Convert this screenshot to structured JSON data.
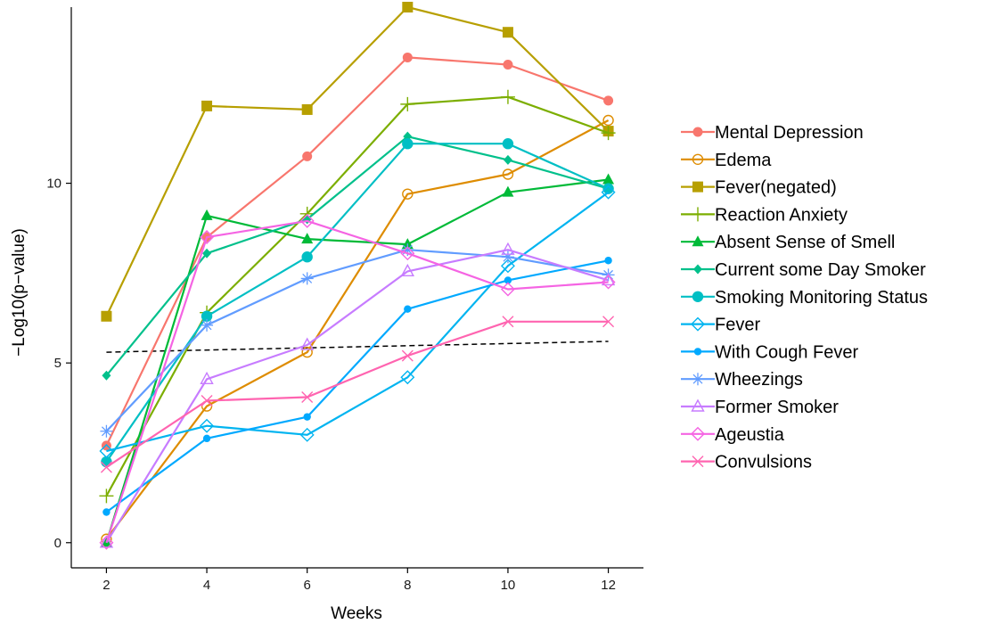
{
  "chart_data": {
    "type": "line",
    "xlabel": "Weeks",
    "ylabel": "−Log10(p−value)",
    "x": [
      2,
      4,
      6,
      8,
      10,
      12
    ],
    "xticks": [
      "2",
      "4",
      "6",
      "8",
      "10",
      "12"
    ],
    "yticks": [
      "0",
      "5",
      "10"
    ],
    "xlim": [
      1.3,
      12.7
    ],
    "ylim": [
      -0.7,
      14.9
    ],
    "grid": false,
    "legend_position": "right",
    "series": [
      {
        "name": "Mental Depression",
        "color": "#F8766D",
        "marker": "circle-filled",
        "values": [
          2.7,
          8.5,
          10.75,
          13.5,
          13.3,
          12.3
        ]
      },
      {
        "name": "Edema",
        "color": "#DE8C00",
        "marker": "circle-open",
        "values": [
          0.1,
          3.8,
          5.3,
          9.7,
          10.25,
          11.75
        ]
      },
      {
        "name": "Fever(negated)",
        "color": "#B79F00",
        "marker": "square-filled",
        "values": [
          6.3,
          12.15,
          12.05,
          14.9,
          14.2,
          11.45
        ]
      },
      {
        "name": "Reaction Anxiety",
        "color": "#7CAE00",
        "marker": "plus",
        "values": [
          1.3,
          6.4,
          9.15,
          12.2,
          12.4,
          11.4
        ]
      },
      {
        "name": "Absent Sense of Smell",
        "color": "#00BA38",
        "marker": "triangle-filled",
        "values": [
          0.0,
          9.1,
          8.45,
          8.3,
          9.75,
          10.1
        ]
      },
      {
        "name": "Current some Day Smoker",
        "color": "#00C08B",
        "marker": "diamond-filled",
        "values": [
          4.65,
          8.05,
          9.0,
          11.3,
          10.65,
          9.85
        ]
      },
      {
        "name": "Smoking Monitoring Status",
        "color": "#00BFC4",
        "marker": "circle-filled-large",
        "values": [
          2.25,
          6.3,
          7.95,
          11.1,
          11.1,
          9.85
        ]
      },
      {
        "name": "Fever",
        "color": "#00B4F0",
        "marker": "diamond-open",
        "values": [
          2.55,
          3.25,
          3.0,
          4.6,
          7.7,
          9.75
        ]
      },
      {
        "name": "With Cough Fever",
        "color": "#00A9FF",
        "marker": "dot",
        "values": [
          0.85,
          2.9,
          3.5,
          6.5,
          7.3,
          7.85
        ]
      },
      {
        "name": "Wheezings",
        "color": "#619CFF",
        "marker": "star",
        "values": [
          3.1,
          6.05,
          7.35,
          8.15,
          7.95,
          7.45
        ]
      },
      {
        "name": "Former Smoker",
        "color": "#C77CFF",
        "marker": "triangle-open",
        "values": [
          0.0,
          4.55,
          5.5,
          7.55,
          8.15,
          7.3
        ]
      },
      {
        "name": "Ageustia",
        "color": "#F564E3",
        "marker": "diamond-open",
        "values": [
          0.0,
          8.5,
          8.95,
          8.05,
          7.05,
          7.25
        ]
      },
      {
        "name": "Convulsions",
        "color": "#FF64B0",
        "marker": "x",
        "values": [
          2.1,
          3.95,
          4.05,
          5.2,
          6.15,
          6.15
        ]
      }
    ],
    "threshold": {
      "style": "dashed",
      "color": "#000000",
      "from": [
        2,
        5.3
      ],
      "to": [
        12,
        5.6
      ]
    }
  }
}
